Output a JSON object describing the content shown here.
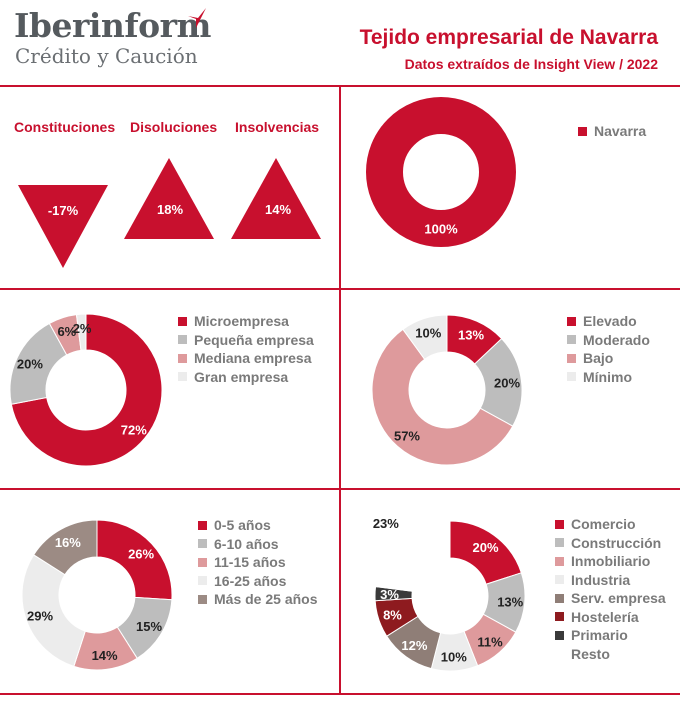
{
  "brand": {
    "name": "Iberinform",
    "tagline": "Crédito y Caución"
  },
  "header": {
    "title": "Tejido empresarial de Navarra",
    "subtitle": "Datos extraídos de Insight View / 2022"
  },
  "indicators": [
    {
      "label": "Constituciones",
      "value": "-17%",
      "direction": "down"
    },
    {
      "label": "Disoluciones",
      "value": "18%",
      "direction": "up"
    },
    {
      "label": "Insolvencias",
      "value": "14%",
      "direction": "up"
    }
  ],
  "colors": {
    "accent": "#c8102e",
    "grid_line": "#c8102e"
  },
  "chart_data": [
    {
      "type": "pie",
      "variant": "donut",
      "categories": [
        "Navarra"
      ],
      "values": [
        100
      ],
      "data_labels": [
        "100%"
      ],
      "colors": [
        "#c8102e"
      ],
      "legend": "right"
    },
    {
      "type": "pie",
      "variant": "donut",
      "categories": [
        "Microempresa",
        "Pequeña empresa",
        "Mediana empresa",
        "Gran empresa"
      ],
      "values": [
        72,
        20,
        6,
        2
      ],
      "data_labels": [
        "72%",
        "20%",
        "6%",
        "2%"
      ],
      "colors": [
        "#c8102e",
        "#bdbdbd",
        "#de9a9c",
        "#ececec"
      ],
      "legend": "right"
    },
    {
      "type": "pie",
      "variant": "donut",
      "categories": [
        "Elevado",
        "Moderado",
        "Bajo",
        "Mínimo"
      ],
      "values": [
        13,
        20,
        57,
        10
      ],
      "data_labels": [
        "13%",
        "20%",
        "57%",
        "10%"
      ],
      "colors": [
        "#c8102e",
        "#bdbdbd",
        "#de9a9c",
        "#ececec"
      ],
      "legend": "right"
    },
    {
      "type": "pie",
      "variant": "donut",
      "categories": [
        "0-5 años",
        "6-10 años",
        "11-15 años",
        "16-25 años",
        "Más de 25 años"
      ],
      "values": [
        26,
        15,
        14,
        29,
        16
      ],
      "data_labels": [
        "26%",
        "15%",
        "14%",
        "29%",
        "16%"
      ],
      "colors": [
        "#c8102e",
        "#bdbdbd",
        "#de9a9c",
        "#ececec",
        "#9c8b84"
      ],
      "legend": "right"
    },
    {
      "type": "pie",
      "variant": "donut",
      "categories": [
        "Comercio",
        "Construcción",
        "Inmobiliario",
        "Industria",
        "Serv. empresa",
        "Hostelería",
        "Primario",
        "Resto"
      ],
      "values": [
        20,
        13,
        11,
        10,
        12,
        8,
        3,
        23
      ],
      "data_labels": [
        "20%",
        "13%",
        "11%",
        "10%",
        "12%",
        "8%",
        "3%",
        "23%"
      ],
      "colors": [
        "#c8102e",
        "#bdbdbd",
        "#de9a9c",
        "#ececec",
        "#8f7e77",
        "#8e1b1f",
        "#3a3a3a",
        "#ffffff"
      ],
      "legend": "right"
    }
  ]
}
